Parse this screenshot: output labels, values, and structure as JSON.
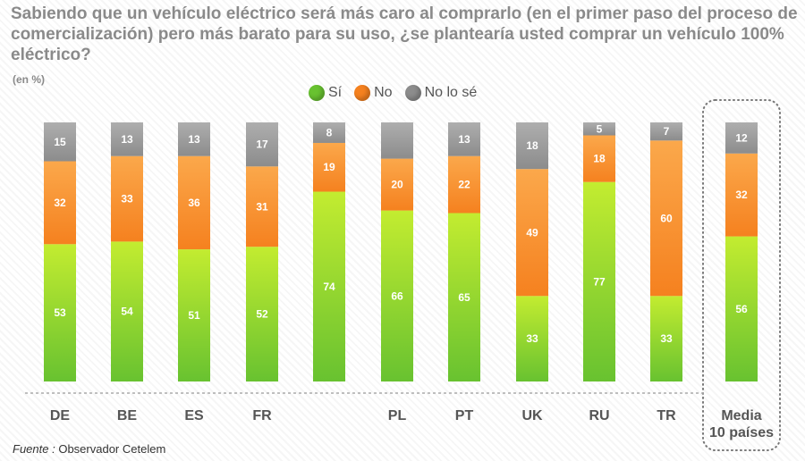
{
  "title": "Sabiendo que un vehículo eléctrico será más caro al comprarlo (en el primer paso del proceso de comercialización) pero más barato para su uso, ¿se plantearía usted comprar un vehículo 100% eléctrico?",
  "unit_label": "(en %)",
  "source_label": "Fuente :",
  "source_value": "Observador Cetelem",
  "colors": {
    "si": "#68c230",
    "no": "#f5811f",
    "nolose": "#8c8c8c",
    "si_light": "#c3ec30",
    "no_light": "#fba84b",
    "nolose_light": "#aeaeae"
  },
  "chart_data": {
    "type": "bar",
    "stacked": true,
    "title": "Sabiendo que un vehículo eléctrico será más caro al comprarlo (en el primer paso del proceso de comercialización) pero más barato para su uso, ¿se plantearía usted comprar un vehículo 100% eléctrico?",
    "ylabel": "(en %)",
    "categories": [
      "DE",
      "BE",
      "ES",
      "FR",
      "",
      "PL",
      "PT",
      "UK",
      "RU",
      "TR",
      "Media 10 países"
    ],
    "series": [
      {
        "name": "Sí",
        "values": [
          53,
          54,
          51,
          52,
          74,
          66,
          65,
          33,
          77,
          33,
          56
        ]
      },
      {
        "name": "No",
        "values": [
          32,
          33,
          36,
          31,
          19,
          20,
          22,
          49,
          18,
          60,
          32
        ]
      },
      {
        "name": "No lo sé",
        "values": [
          15,
          13,
          13,
          17,
          8,
          14,
          13,
          18,
          5,
          7,
          12
        ]
      }
    ],
    "value_labels": {
      "Sí": [
        "53",
        "54",
        "51",
        "52",
        "74",
        "66",
        "65",
        "33",
        "77",
        "33",
        "56"
      ],
      "No": [
        "32",
        "33",
        "36",
        "31",
        "19",
        "20",
        "22",
        "49",
        "18",
        "60",
        "32"
      ],
      "No lo sé": [
        "15",
        "13",
        "13",
        "17",
        "8",
        "",
        "13",
        "18",
        "5",
        "7",
        "12"
      ]
    },
    "category_labels": [
      [
        "DE"
      ],
      [
        "BE"
      ],
      [
        "ES"
      ],
      [
        "FR"
      ],
      [
        ""
      ],
      [
        "PL"
      ],
      [
        "PT"
      ],
      [
        "UK"
      ],
      [
        "RU"
      ],
      [
        "TR"
      ],
      [
        "Media",
        "10 países"
      ]
    ],
    "ylim": [
      0,
      100
    ],
    "legend_position": "top-center",
    "highlight_category": "Media 10 países"
  }
}
